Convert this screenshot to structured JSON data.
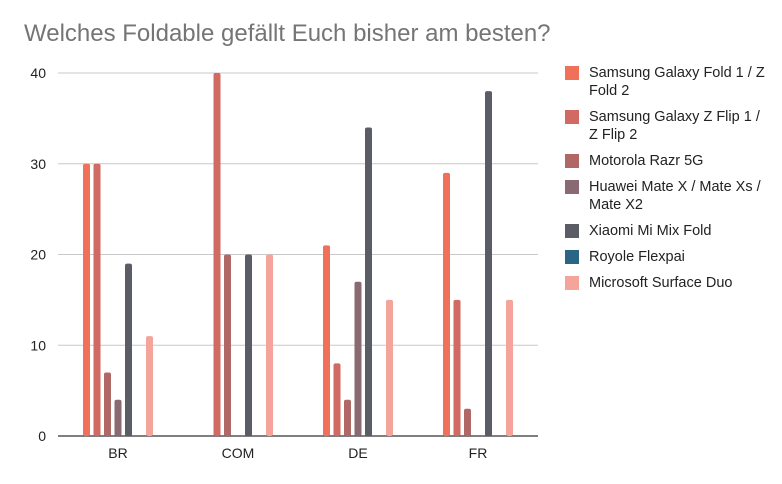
{
  "chart_data": {
    "type": "bar",
    "title": "Welches Foldable gefällt Euch bisher am besten?",
    "categories": [
      "BR",
      "COM",
      "DE",
      "FR"
    ],
    "ylim": [
      0,
      40
    ],
    "yticks": [
      0,
      10,
      20,
      30,
      40
    ],
    "grid": true,
    "legend_position": "right",
    "series": [
      {
        "name": "Samsung Galaxy Fold 1 / Z Fold 2",
        "color": "#f0705a",
        "values": [
          30,
          0,
          21,
          29
        ]
      },
      {
        "name": "Samsung Galaxy Z Flip 1 / Z Flip 2",
        "color": "#d06a62",
        "values": [
          30,
          40,
          8,
          15
        ]
      },
      {
        "name": "Motorola Razr 5G",
        "color": "#b06866",
        "values": [
          7,
          20,
          4,
          3
        ]
      },
      {
        "name": "Huawei Mate X / Mate Xs / Mate X2",
        "color": "#8a6a72",
        "values": [
          4,
          0,
          17,
          0
        ]
      },
      {
        "name": "Xiaomi Mi Mix Fold",
        "color": "#5a5d66",
        "values": [
          19,
          20,
          34,
          38
        ]
      },
      {
        "name": "Royole Flexpai",
        "color": "#2b6585",
        "values": [
          0,
          0,
          0,
          0
        ]
      },
      {
        "name": "Microsoft Surface Duo",
        "color": "#f4a49a",
        "values": [
          11,
          20,
          15,
          15
        ]
      }
    ]
  }
}
